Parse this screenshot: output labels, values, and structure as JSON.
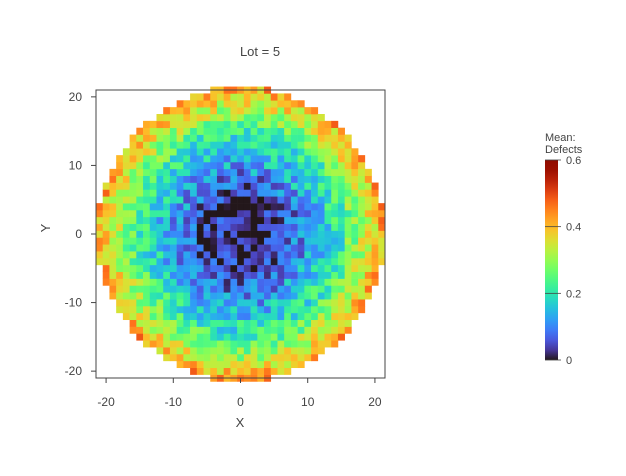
{
  "chart_data": {
    "type": "heatmap",
    "title": "Lot = 5",
    "xlabel": "X",
    "ylabel": "Y",
    "xlim": [
      -21.5,
      21.5
    ],
    "ylim": [
      -21,
      21
    ],
    "x_ticks": [
      -20,
      -10,
      0,
      10,
      20
    ],
    "y_ticks": [
      -20,
      -10,
      0,
      10,
      20
    ],
    "grid": false,
    "colorbar": {
      "title": "Mean: Defects",
      "range": [
        0,
        0.6
      ],
      "ticks": [
        0,
        0.2,
        0.4,
        0.6
      ],
      "colormap": "turbo"
    },
    "description": "circular wafer map of mean defects per die",
    "wafer_radius": 21,
    "radial_profile": [
      {
        "r": 0,
        "mean": 0.01
      },
      {
        "r": 5,
        "mean": 0.03
      },
      {
        "r": 10,
        "mean": 0.12
      },
      {
        "r": 15,
        "mean": 0.22
      },
      {
        "r": 20,
        "mean": 0.38
      }
    ]
  }
}
